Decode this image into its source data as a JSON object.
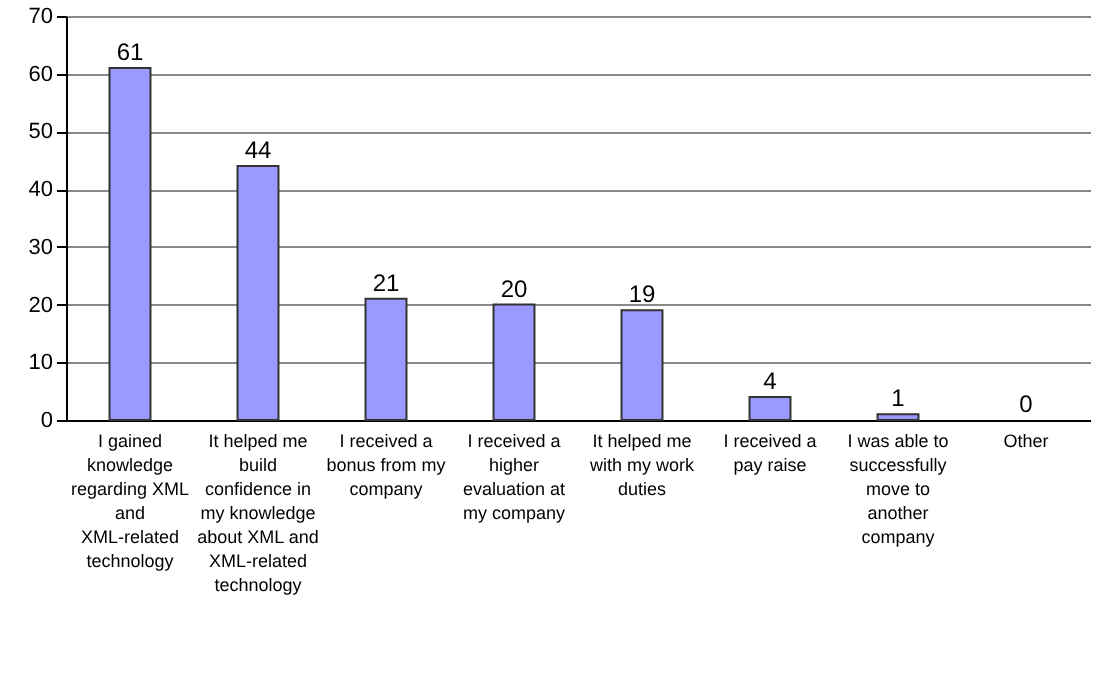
{
  "chart_data": {
    "type": "bar",
    "categories": [
      "I gained knowledge regarding XML and XML-related technology",
      "It helped me build confidence in my knowledge about XML and XML-related technology",
      "I received a bonus from my company",
      "I received a higher evaluation at my company",
      "It helped me with my work duties",
      "I received a pay raise",
      "I was able to successfully move to another company",
      "Other"
    ],
    "values": [
      61,
      44,
      21,
      20,
      19,
      4,
      1,
      0
    ],
    "color": "#9999ff",
    "ylim": [
      0,
      70
    ],
    "yticks": [
      0,
      10,
      20,
      30,
      40,
      50,
      60,
      70
    ],
    "grid": "y",
    "data_labels": true
  }
}
